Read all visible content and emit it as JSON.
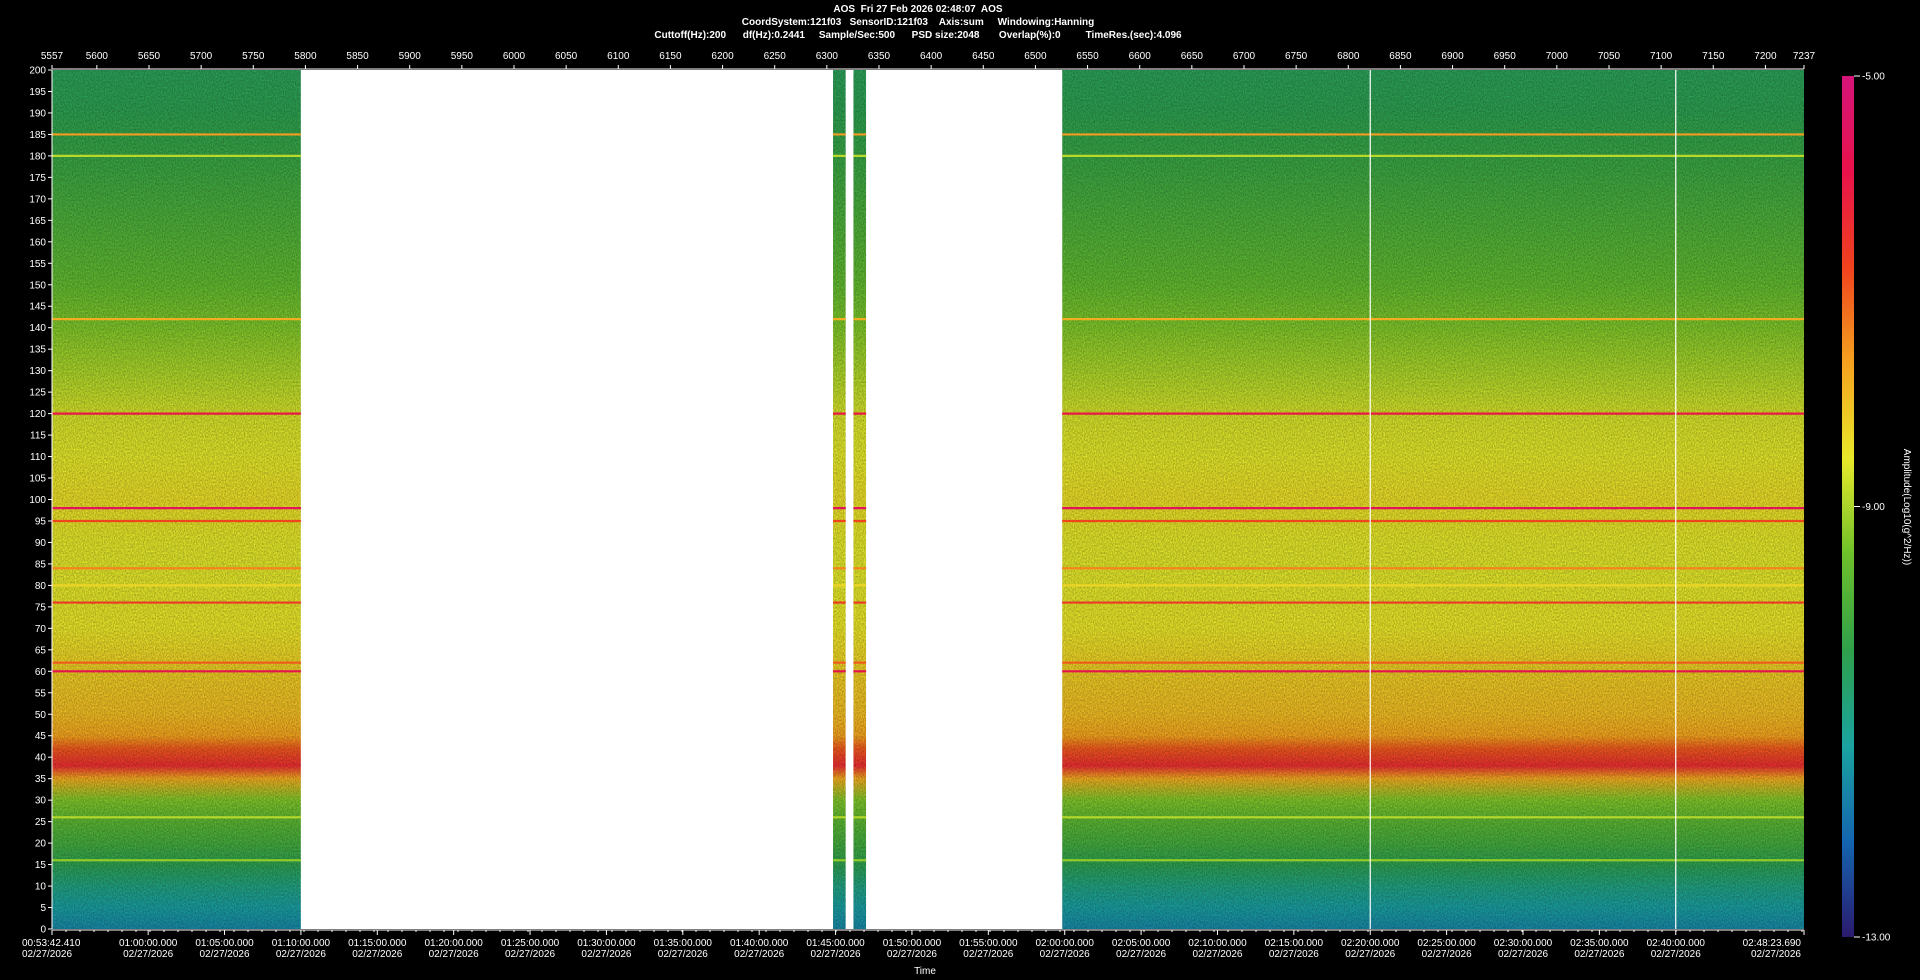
{
  "header": {
    "line1": "AOS  Fri 27 Feb 2026 02:48:07  AOS",
    "line2": "CoordSystem:121f03   SensorID:121f03    Axis:sum     Windowing:Hanning",
    "line3": "Cuttoff(Hz):200      df(Hz):0.2441     Sample/Sec:500      PSD size:2048       Overlap(%):0         TimeRes.(sec):4.096"
  },
  "chart_data": {
    "type": "heatmap",
    "title": "AOS  Fri 27 Feb 2026 02:48:07  AOS",
    "xlabel": "Time",
    "ylabel": "",
    "ylim": [
      0,
      200
    ],
    "y_ticks": [
      "200",
      "195",
      "190",
      "185",
      "180",
      "175",
      "170",
      "165",
      "160",
      "155",
      "150",
      "145",
      "140",
      "135",
      "130",
      "125",
      "120",
      "115",
      "110",
      "105",
      "100",
      "95",
      "90",
      "85",
      "80",
      "75",
      "70",
      "65",
      "60",
      "55",
      "50",
      "45",
      "40",
      "35",
      "30",
      "25",
      "20",
      "15",
      "10",
      "5",
      "0"
    ],
    "top_axis_range": [
      5557,
      7237
    ],
    "top_ticks": [
      "5557",
      "5600",
      "5650",
      "5700",
      "5750",
      "5800",
      "5850",
      "5900",
      "5950",
      "6000",
      "6050",
      "6100",
      "6150",
      "6200",
      "6250",
      "6300",
      "6350",
      "6400",
      "6450",
      "6500",
      "6550",
      "6600",
      "6650",
      "6700",
      "6750",
      "6800",
      "6850",
      "6900",
      "6950",
      "7000",
      "7050",
      "7100",
      "7150",
      "7200",
      "7237"
    ],
    "time_ticks": [
      {
        "time": "00:53:42.410",
        "date": "02/27/2026"
      },
      {
        "time": "01:00:00.000",
        "date": "02/27/2026"
      },
      {
        "time": "01:05:00.000",
        "date": "02/27/2026"
      },
      {
        "time": "01:10:00.000",
        "date": "02/27/2026"
      },
      {
        "time": "01:15:00.000",
        "date": "02/27/2026"
      },
      {
        "time": "01:20:00.000",
        "date": "02/27/2026"
      },
      {
        "time": "01:25:00.000",
        "date": "02/27/2026"
      },
      {
        "time": "01:30:00.000",
        "date": "02/27/2026"
      },
      {
        "time": "01:35:00.000",
        "date": "02/27/2026"
      },
      {
        "time": "01:40:00.000",
        "date": "02/27/2026"
      },
      {
        "time": "01:45:00.000",
        "date": "02/27/2026"
      },
      {
        "time": "01:50:00.000",
        "date": "02/27/2026"
      },
      {
        "time": "01:55:00.000",
        "date": "02/27/2026"
      },
      {
        "time": "02:00:00.000",
        "date": "02/27/2026"
      },
      {
        "time": "02:05:00.000",
        "date": "02/27/2026"
      },
      {
        "time": "02:10:00.000",
        "date": "02/27/2026"
      },
      {
        "time": "02:15:00.000",
        "date": "02/27/2026"
      },
      {
        "time": "02:20:00.000",
        "date": "02/27/2026"
      },
      {
        "time": "02:25:00.000",
        "date": "02/27/2026"
      },
      {
        "time": "02:30:00.000",
        "date": "02/27/2026"
      },
      {
        "time": "02:35:00.000",
        "date": "02/27/2026"
      },
      {
        "time": "02:40:00.000",
        "date": "02/27/2026"
      },
      {
        "time": "02:48:23.690",
        "date": "02/27/2026"
      }
    ],
    "data_present_time_ranges": [
      [
        "00:53:42.410",
        "01:10:00.000"
      ],
      [
        "01:44:50.000",
        "01:45:40.000"
      ],
      [
        "01:46:10.000",
        "01:47:00.000"
      ],
      [
        "01:59:50.000",
        "02:48:23.690"
      ]
    ],
    "background_profile": [
      {
        "f": 0,
        "v": -11.6
      },
      {
        "f": 5,
        "v": -11.3
      },
      {
        "f": 10,
        "v": -10.9
      },
      {
        "f": 15,
        "v": -10.4
      },
      {
        "f": 20,
        "v": -10.0
      },
      {
        "f": 25,
        "v": -9.7
      },
      {
        "f": 30,
        "v": -9.3
      },
      {
        "f": 35,
        "v": -7.8
      },
      {
        "f": 38,
        "v": -6.4
      },
      {
        "f": 42,
        "v": -7.0
      },
      {
        "f": 45,
        "v": -7.7
      },
      {
        "f": 50,
        "v": -8.0
      },
      {
        "f": 55,
        "v": -8.1
      },
      {
        "f": 60,
        "v": -8.2
      },
      {
        "f": 70,
        "v": -8.5
      },
      {
        "f": 80,
        "v": -8.6
      },
      {
        "f": 90,
        "v": -8.6
      },
      {
        "f": 100,
        "v": -8.4
      },
      {
        "f": 110,
        "v": -8.6
      },
      {
        "f": 120,
        "v": -8.7
      },
      {
        "f": 130,
        "v": -9.0
      },
      {
        "f": 140,
        "v": -9.3
      },
      {
        "f": 150,
        "v": -9.6
      },
      {
        "f": 160,
        "v": -9.8
      },
      {
        "f": 170,
        "v": -10.0
      },
      {
        "f": 180,
        "v": -10.2
      },
      {
        "f": 190,
        "v": -10.4
      },
      {
        "f": 200,
        "v": -10.5
      }
    ],
    "spectral_lines": [
      {
        "f": 185,
        "v": -7.6
      },
      {
        "f": 180,
        "v": -8.9
      },
      {
        "f": 142,
        "v": -7.8
      },
      {
        "f": 120,
        "v": -6.0
      },
      {
        "f": 98,
        "v": -5.6
      },
      {
        "f": 95,
        "v": -6.8
      },
      {
        "f": 84,
        "v": -7.4
      },
      {
        "f": 80,
        "v": -8.3
      },
      {
        "f": 76,
        "v": -6.6
      },
      {
        "f": 62,
        "v": -7.0
      },
      {
        "f": 60,
        "v": -5.8
      },
      {
        "f": 26,
        "v": -8.9
      },
      {
        "f": 16,
        "v": -9.2
      }
    ],
    "colorbar": {
      "label": "Amplitude(Log10(g^2/Hz))",
      "max": "-5.00",
      "mid": "-9.00",
      "min": "-13.00",
      "range": [
        -13,
        -5
      ],
      "stops": [
        "#2a1a6e",
        "#1565b0",
        "#1aa3a0",
        "#2fa04a",
        "#6dc02a",
        "#e9e92a",
        "#f5a21e",
        "#f0421e",
        "#e8124a",
        "#d5157a"
      ]
    },
    "grid": false,
    "legend_position": "right"
  }
}
